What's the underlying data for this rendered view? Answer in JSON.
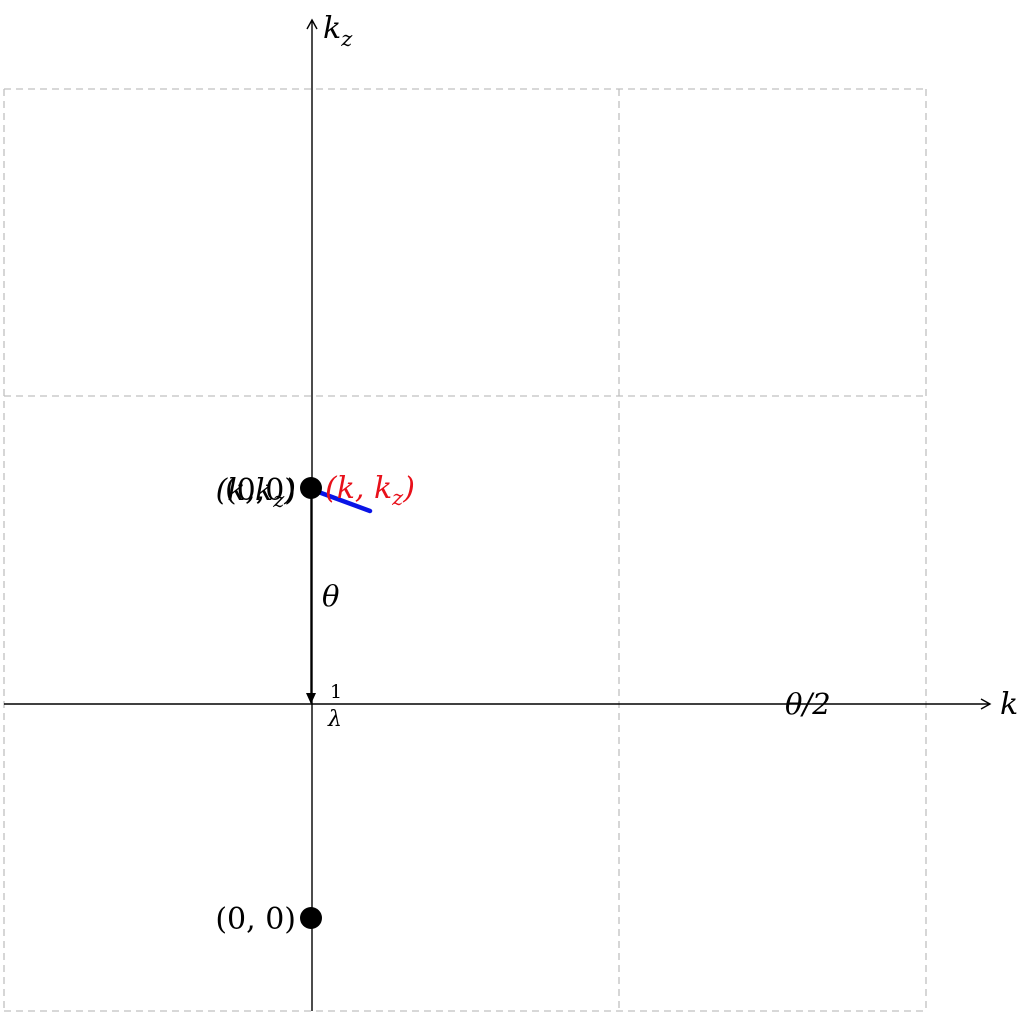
{
  "diagram": {
    "axes": {
      "horizontal_label": "k",
      "vertical_label_base": "k",
      "vertical_label_sub": "z"
    },
    "points": {
      "upper_label_a": "(0,0)",
      "upper_label_b": "(k,k",
      "upper_label_b_sub": "z",
      "upper_label_b_close": ")",
      "red_label_open": "(k, k",
      "red_label_sub": "z",
      "red_label_close": ")",
      "lower_label": "(0, 0)"
    },
    "annotations": {
      "theta": "θ",
      "theta_half": "θ/2",
      "fraction_numerator": "1",
      "fraction_denominator": "λ"
    },
    "colors": {
      "grid": "#c0c0c0",
      "axis": "#000000",
      "vector_blue": "#0a14e6",
      "label_red": "#e8101a"
    }
  }
}
